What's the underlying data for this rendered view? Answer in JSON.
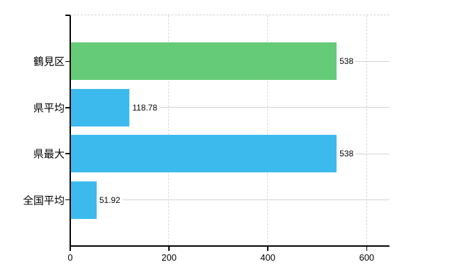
{
  "chart_data": {
    "type": "bar",
    "orientation": "horizontal",
    "title": "",
    "xlabel": "",
    "ylabel": "",
    "legend_position": "none",
    "categories": [
      "鶴見区",
      "県平均",
      "県最大",
      "全国平均"
    ],
    "values": [
      538,
      118.78,
      538,
      51.92
    ],
    "value_labels": [
      "538",
      "118.78",
      "538",
      "51.92"
    ],
    "bar_colors": [
      "#66CB78",
      "#3CBAEE",
      "#3CBAEE",
      "#3CBAEE"
    ],
    "x_tick_labels": [
      "0",
      "200",
      "400",
      "600"
    ],
    "x_tick_values": [
      0,
      200,
      400,
      600
    ],
    "xlim": [
      0,
      646
    ],
    "grid": {
      "vertical_gridlines": "dashed",
      "horizontal_category_lines": "solid",
      "top_border": "dashed"
    },
    "colors": {
      "bar_default": "#3CBAEE",
      "bar_highlight": "#66CB78",
      "axis": "#000000",
      "gridline": "#D2D2D2",
      "text": "#000000",
      "background": "#FFFFFF"
    }
  }
}
